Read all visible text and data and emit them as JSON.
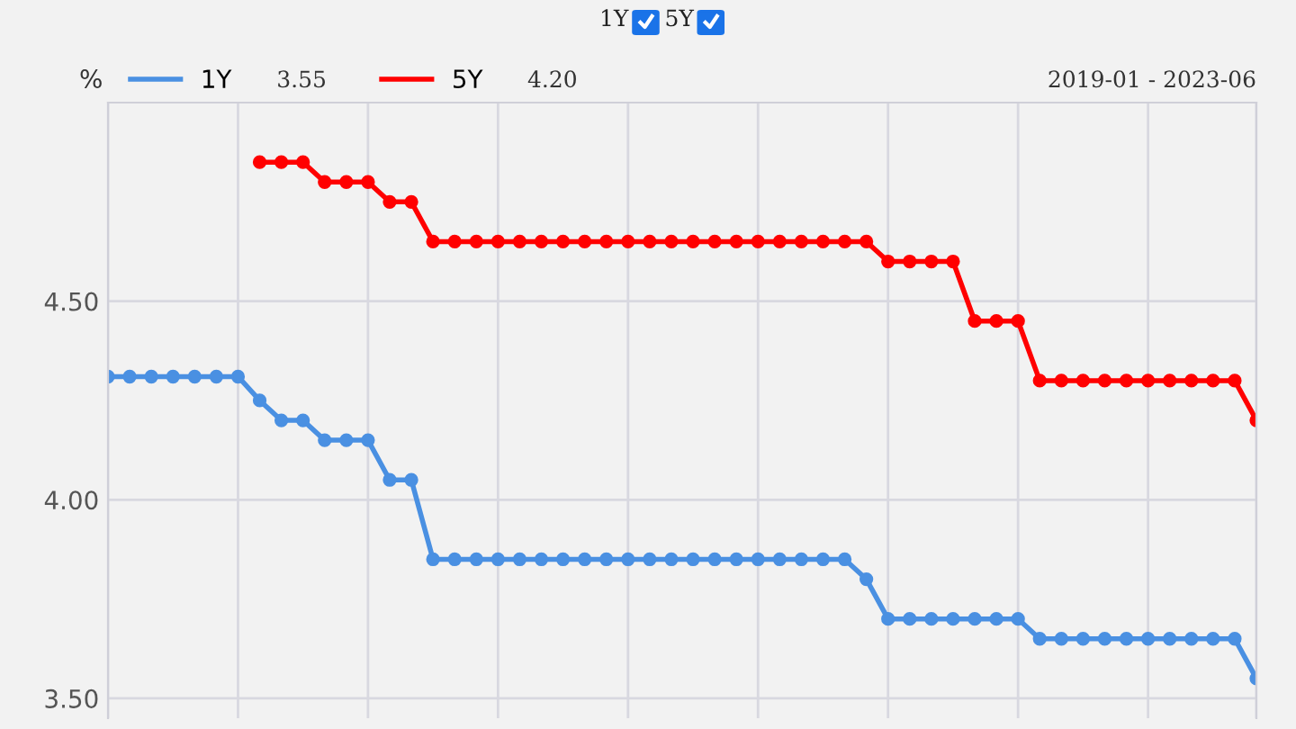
{
  "chart_data": {
    "type": "line",
    "ylabel": "%",
    "categories": [
      null,
      null,
      null,
      null,
      null,
      null,
      null,
      null,
      null,
      null,
      null,
      null,
      null,
      null,
      null,
      null,
      null,
      null,
      null,
      null,
      null,
      null,
      null,
      null,
      null,
      null,
      null,
      null,
      null,
      null,
      null,
      null,
      null,
      null,
      null,
      null,
      null,
      null,
      null,
      null,
      null,
      null,
      null,
      null,
      null,
      null,
      null,
      null,
      null,
      null,
      null,
      null,
      null,
      null
    ],
    "series": [
      {
        "name": "1Y",
        "color": "#4a90e2",
        "values": [
          4.31,
          4.31,
          4.31,
          4.31,
          4.31,
          4.31,
          4.31,
          4.25,
          4.2,
          4.2,
          4.15,
          4.15,
          4.15,
          4.05,
          4.05,
          3.85,
          3.85,
          3.85,
          3.85,
          3.85,
          3.85,
          3.85,
          3.85,
          3.85,
          3.85,
          3.85,
          3.85,
          3.85,
          3.85,
          3.85,
          3.85,
          3.85,
          3.85,
          3.85,
          3.85,
          3.8,
          3.7,
          3.7,
          3.7,
          3.7,
          3.7,
          3.7,
          3.7,
          3.65,
          3.65,
          3.65,
          3.65,
          3.65,
          3.65,
          3.65,
          3.65,
          3.65,
          3.65,
          3.55
        ]
      },
      {
        "name": "5Y",
        "color": "#ff0000",
        "values": [
          null,
          null,
          null,
          null,
          null,
          null,
          null,
          4.85,
          4.85,
          4.85,
          4.8,
          4.8,
          4.8,
          4.75,
          4.75,
          4.65,
          4.65,
          4.65,
          4.65,
          4.65,
          4.65,
          4.65,
          4.65,
          4.65,
          4.65,
          4.65,
          4.65,
          4.65,
          4.65,
          4.65,
          4.65,
          4.65,
          4.65,
          4.65,
          4.65,
          4.65,
          4.6,
          4.6,
          4.6,
          4.6,
          4.45,
          4.45,
          4.45,
          4.3,
          4.3,
          4.3,
          4.3,
          4.3,
          4.3,
          4.3,
          4.3,
          4.3,
          4.3,
          4.2
        ]
      }
    ],
    "ylim": [
      3.45,
      5.0
    ],
    "yticks": [
      {
        "value": 3.5,
        "label": "3.50"
      },
      {
        "value": 4.0,
        "label": "4.00"
      },
      {
        "value": 4.5,
        "label": "4.50"
      }
    ],
    "grid": true,
    "legend": "top left",
    "marker": "circle",
    "line_style": "solid",
    "annotations": [
      "1Y",
      "5Y",
      "3.55",
      "4.20",
      "2019-01 - 2023-06"
    ]
  }
}
